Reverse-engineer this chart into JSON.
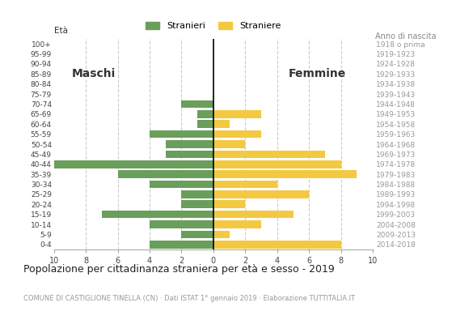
{
  "age_groups": [
    "0-4",
    "5-9",
    "10-14",
    "15-19",
    "20-24",
    "25-29",
    "30-34",
    "35-39",
    "40-44",
    "45-49",
    "50-54",
    "55-59",
    "60-64",
    "65-69",
    "70-74",
    "75-79",
    "80-84",
    "85-89",
    "90-94",
    "95-99",
    "100+"
  ],
  "birth_years": [
    "2014-2018",
    "2009-2013",
    "2004-2008",
    "1999-2003",
    "1994-1998",
    "1989-1993",
    "1984-1988",
    "1979-1983",
    "1974-1978",
    "1969-1973",
    "1964-1968",
    "1959-1963",
    "1954-1958",
    "1949-1953",
    "1944-1948",
    "1939-1943",
    "1934-1938",
    "1929-1933",
    "1924-1928",
    "1919-1923",
    "1918 o prima"
  ],
  "males": [
    4,
    2,
    4,
    7,
    2,
    2,
    4,
    6,
    10,
    3,
    3,
    4,
    1,
    1,
    2,
    0,
    0,
    0,
    0,
    0,
    0
  ],
  "females": [
    8,
    1,
    3,
    5,
    2,
    6,
    4,
    9,
    8,
    7,
    2,
    3,
    1,
    3,
    0,
    0,
    0,
    0,
    0,
    0,
    0
  ],
  "male_color": "#6a9e5b",
  "female_color": "#f5c842",
  "title": "Popolazione per cittadinanza straniera per età e sesso - 2019",
  "subtitle": "COMUNE DI CASTIGLIONE TINELLA (CN) · Dati ISTAT 1° gennaio 2019 · Elaborazione TUTTITALIA.IT",
  "legend_male": "Stranieri",
  "legend_female": "Straniere",
  "label_eta": "Età",
  "label_anno": "Anno di nascita",
  "label_maschi": "Maschi",
  "label_femmine": "Femmine",
  "xlim": 10,
  "background_color": "#ffffff",
  "grid_color": "#cccccc"
}
